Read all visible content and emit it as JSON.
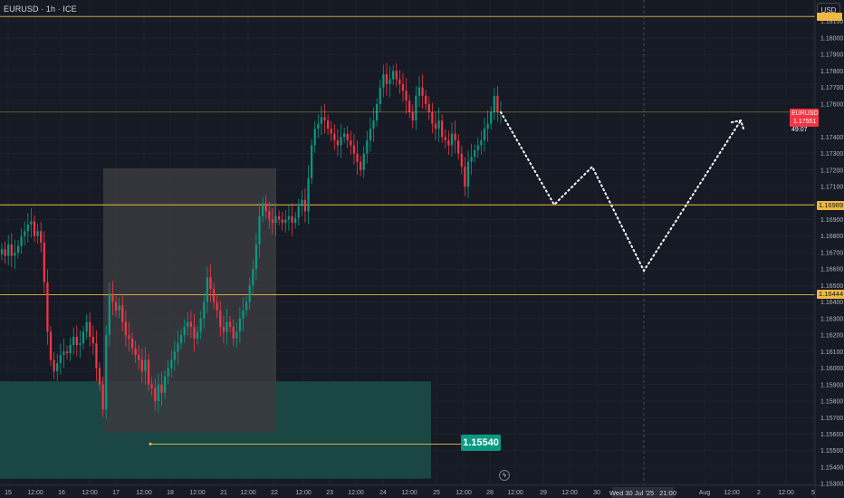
{
  "header": {
    "symbol_label": "EURUSD · 1h · ICE",
    "currency_button": "USD"
  },
  "colors": {
    "background": "#161a25",
    "grid": "#232632",
    "bull": "#089981",
    "bear": "#f23645",
    "level_line": "#f0b840",
    "demand_zone": "#1b4f4a",
    "range_box": "#3a3b40",
    "axis_text": "#b2b5be",
    "projection": "#ffffff"
  },
  "price_axis": {
    "ticks": [
      "1.18100",
      "1.18000",
      "1.17900",
      "1.17800",
      "1.17700",
      "1.17600",
      "1.17400",
      "1.17300",
      "1.17200",
      "1.17100",
      "1.16900",
      "1.16800",
      "1.16700",
      "1.16600",
      "1.16500",
      "1.16400",
      "1.16300",
      "1.16200",
      "1.16100",
      "1.16000",
      "1.15900",
      "1.15800",
      "1.15700",
      "1.15600",
      "1.15500",
      "1.15400",
      "1.15300"
    ]
  },
  "time_axis": {
    "ticks": [
      "15",
      "12:00",
      "16",
      "12:00",
      "17",
      "12:00",
      "18",
      "12:00",
      "21",
      "12:00",
      "22",
      "12:00",
      "23",
      "12:00",
      "24",
      "12:00",
      "25",
      "12:00",
      "28",
      "12:00",
      "29",
      "12:00",
      "30",
      "12:00",
      "Aug",
      "12:00",
      "2",
      "12:00",
      "5"
    ]
  },
  "levels": [
    {
      "price": 1.1813,
      "label": ""
    },
    {
      "price": 1.16989,
      "label": "1.16989"
    },
    {
      "price": 1.16444,
      "label": "1.16444"
    }
  ],
  "current_price": {
    "symbol": "EURUSD",
    "price": "1.17551",
    "countdown": "49:07"
  },
  "measure": {
    "label": "1.15540"
  },
  "crosshair": {
    "date": "Wed 30 Jul '25",
    "time": "21:00"
  },
  "chart_data": {
    "type": "candlestick",
    "symbol": "EURUSD",
    "timeframe": "1h",
    "exchange": "ICE",
    "ylim": [
      1.1529,
      1.1823
    ],
    "series": [
      {
        "name": "closes",
        "values": [
          1.1672,
          1.1668,
          1.1675,
          1.1668,
          1.167,
          1.1674,
          1.168,
          1.1683,
          1.1687,
          1.1689,
          1.168,
          1.1683,
          1.1676,
          1.1652,
          1.1622,
          1.1605,
          1.1598,
          1.1603,
          1.1608,
          1.161,
          1.1609,
          1.1614,
          1.1619,
          1.1614,
          1.1615,
          1.1622,
          1.1628,
          1.1619,
          1.1615,
          1.16,
          1.159,
          1.1575,
          1.162,
          1.1645,
          1.164,
          1.1635,
          1.1638,
          1.1628,
          1.162,
          1.1618,
          1.1612,
          1.1608,
          1.1605,
          1.1598,
          1.1605,
          1.159,
          1.1588,
          1.158,
          1.159,
          1.1585,
          1.1595,
          1.16,
          1.1605,
          1.161,
          1.1615,
          1.162,
          1.1625,
          1.1628,
          1.1625,
          1.1618,
          1.1622,
          1.163,
          1.164,
          1.1655,
          1.1648,
          1.164,
          1.1635,
          1.1625,
          1.1622,
          1.1628,
          1.1625,
          1.1618,
          1.1622,
          1.163,
          1.1635,
          1.164,
          1.165,
          1.166,
          1.1675,
          1.1692,
          1.17,
          1.1695,
          1.169,
          1.1688,
          1.1692,
          1.169,
          1.1688,
          1.169,
          1.1692,
          1.1688,
          1.1691,
          1.1698,
          1.1702,
          1.1695,
          1.1715,
          1.1735,
          1.1745,
          1.1748,
          1.1752,
          1.175,
          1.1745,
          1.1742,
          1.1738,
          1.1735,
          1.174,
          1.1742,
          1.1738,
          1.1735,
          1.173,
          1.1725,
          1.172,
          1.173,
          1.1738,
          1.1745,
          1.175,
          1.176,
          1.177,
          1.1778,
          1.1772,
          1.1775,
          1.178,
          1.1775,
          1.1772,
          1.1768,
          1.1762,
          1.1755,
          1.175,
          1.1765,
          1.177,
          1.1765,
          1.176,
          1.1755,
          1.1748,
          1.1745,
          1.175,
          1.174,
          1.1738,
          1.1735,
          1.1742,
          1.1738,
          1.173,
          1.1722,
          1.171,
          1.1725,
          1.1728,
          1.1732,
          1.1735,
          1.1738,
          1.1745,
          1.1748,
          1.1755,
          1.1765,
          1.1755,
          1.1755
        ]
      },
      {
        "name": "projection",
        "values": [
          1.17551,
          1.1699,
          1.1722,
          1.1659,
          1.175
        ]
      }
    ],
    "demand_zone": {
      "high": 1.1592,
      "low": 1.1533
    },
    "range_box": {
      "high": 1.1721,
      "low": 1.1561
    }
  }
}
